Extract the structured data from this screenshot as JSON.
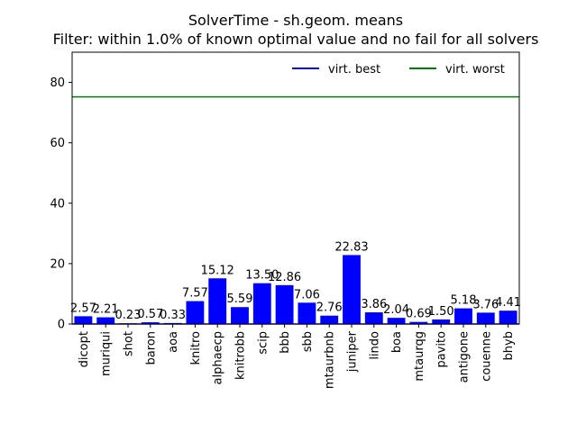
{
  "chart_data": {
    "type": "bar",
    "title": "SolverTime - sh.geom. means",
    "subtitle": "Filter: within 1.0% of known optimal value and no fail for all solvers",
    "xlabel": "",
    "ylabel": "",
    "ylim": [
      0,
      90
    ],
    "yticks": [
      0,
      20,
      40,
      60,
      80
    ],
    "categories": [
      "dicopt",
      "muriqui",
      "shot",
      "baron",
      "aoa",
      "knitro",
      "alphaecp",
      "knitrobb",
      "scip",
      "bbb",
      "sbb",
      "mtaurbnb",
      "juniper",
      "lindo",
      "boa",
      "mtaurqg",
      "pavito",
      "antigone",
      "couenne",
      "bhyb"
    ],
    "values": [
      2.57,
      2.21,
      0.23,
      0.57,
      0.33,
      7.57,
      15.12,
      5.59,
      13.5,
      12.86,
      7.06,
      2.76,
      22.83,
      3.86,
      2.04,
      0.69,
      1.5,
      5.18,
      3.76,
      4.41
    ],
    "value_labels": [
      "2.57",
      "2.21",
      "0.23",
      "0.57",
      "0.33",
      "7.57",
      "15.12",
      "5.59",
      "13.50",
      "12.86",
      "7.06",
      "2.76",
      "22.83",
      "3.86",
      "2.04",
      "0.69",
      "1.50",
      "5.18",
      "3.76",
      "4.41"
    ],
    "bar_color": "#0000ff",
    "reference_lines": [
      {
        "name": "virt. best",
        "value": 0.0,
        "color": "#0000ff"
      },
      {
        "name": "virt. worst",
        "value": 75.2,
        "color": "#008000"
      }
    ],
    "legend_position": "top-right",
    "grid": false
  }
}
